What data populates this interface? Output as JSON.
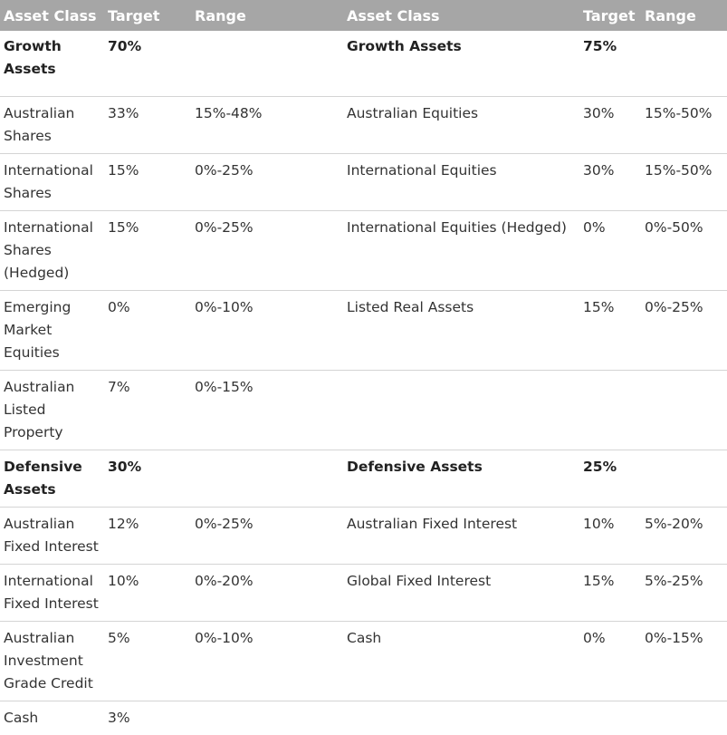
{
  "headers": {
    "left": [
      "Asset Class",
      "Target",
      "Range"
    ],
    "right": [
      "Asset Class",
      "Target",
      "Range"
    ]
  },
  "rows": [
    {
      "left": [
        "Growth Assets",
        "70%",
        ""
      ],
      "right": [
        "Growth Assets",
        "75%",
        ""
      ],
      "bold": true
    },
    {
      "left": [
        "Australian Shares",
        "33%",
        "15%-48%"
      ],
      "right": [
        "Australian Equities",
        "30%",
        "15%-50%"
      ]
    },
    {
      "left": [
        "International Shares",
        "15%",
        "0%-25%"
      ],
      "right": [
        "International Equities",
        "30%",
        "15%-50%"
      ]
    },
    {
      "left": [
        "International Shares (Hedged)",
        "15%",
        "0%-25%"
      ],
      "right": [
        "International Equities (Hedged)",
        "0%",
        "0%-50%"
      ]
    },
    {
      "left": [
        "Emerging Market Equities",
        "0%",
        "0%-10%"
      ],
      "right": [
        "Listed Real Assets",
        "15%",
        "0%-25%"
      ]
    },
    {
      "left": [
        "Australian Listed Property",
        "7%",
        "0%-15%"
      ],
      "right": [
        "",
        "",
        ""
      ]
    },
    {
      "left": [
        "Defensive Assets",
        "30%",
        ""
      ],
      "right": [
        "Defensive Assets",
        "25%",
        ""
      ],
      "bold": true
    },
    {
      "left": [
        "Australian Fixed Interest",
        "12%",
        "0%-25%"
      ],
      "right": [
        "Australian Fixed Interest",
        "10%",
        "5%-20%"
      ]
    },
    {
      "left": [
        "International Fixed Interest",
        "10%",
        "0%-20%"
      ],
      "right": [
        "Global Fixed Interest",
        "15%",
        "5%-25%"
      ]
    },
    {
      "left": [
        "Australian Investment Grade Credit",
        "5%",
        "0%-10%"
      ],
      "right": [
        "Cash",
        "0%",
        "0%-15%"
      ]
    },
    {
      "left": [
        "Cash",
        "3%",
        ""
      ],
      "right": [
        "",
        "",
        ""
      ]
    }
  ]
}
